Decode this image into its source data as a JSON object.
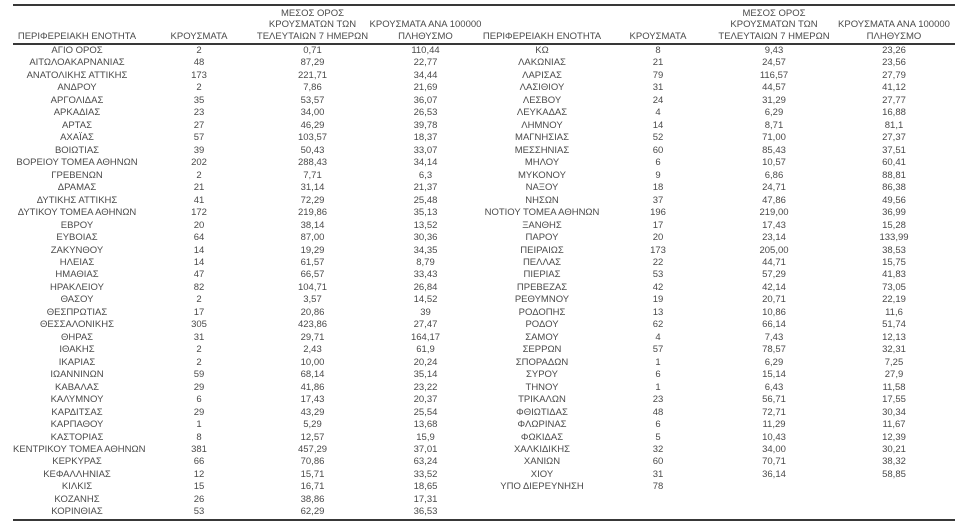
{
  "colors": {
    "text": "#4a4a4a",
    "border": "#383838",
    "background": "#ffffff"
  },
  "table": {
    "columns": {
      "region": "ΠΕΡΙΦΕΡΕΙΑΚΗ ΕΝΟΤΗΤΑ",
      "cases": "ΚΡΟΥΣΜΑΤΑ",
      "avg7": {
        "l1": "ΜΕΣΟΣ ΟΡΟΣ",
        "l2": "ΚΡΟΥΣΜΑΤΩΝ ΤΩΝ",
        "l3": "ΤΕΛΕΥΤΑΙΩΝ 7 ΗΜΕΡΩΝ"
      },
      "per100k": {
        "l1": "ΚΡΟΥΣΜΑΤΑ ΑΝΑ 100000",
        "l2": "ΠΛΗΘΥΣΜΟ"
      }
    },
    "left_rows": [
      [
        "ΑΓΙΟ ΟΡΟΣ",
        "2",
        "0,71",
        "110,44"
      ],
      [
        "ΑΙΤΩΛΟΑΚΑΡΝΑΝΙΑΣ",
        "48",
        "87,29",
        "22,77"
      ],
      [
        "ΑΝΑΤΟΛΙΚΗΣ ΑΤΤΙΚΗΣ",
        "173",
        "221,71",
        "34,44"
      ],
      [
        "ΑΝΔΡΟΥ",
        "2",
        "7,86",
        "21,69"
      ],
      [
        "ΑΡΓΟΛΙΔΑΣ",
        "35",
        "53,57",
        "36,07"
      ],
      [
        "ΑΡΚΑΔΙΑΣ",
        "23",
        "34,00",
        "26,53"
      ],
      [
        "ΑΡΤΑΣ",
        "27",
        "46,29",
        "39,78"
      ],
      [
        "ΑΧΑΪΑΣ",
        "57",
        "103,57",
        "18,37"
      ],
      [
        "ΒΟΙΩΤΙΑΣ",
        "39",
        "50,43",
        "33,07"
      ],
      [
        "ΒΟΡΕΙΟΥ ΤΟΜΕΑ ΑΘΗΝΩΝ",
        "202",
        "288,43",
        "34,14"
      ],
      [
        "ΓΡΕΒΕΝΩΝ",
        "2",
        "7,71",
        "6,3"
      ],
      [
        "ΔΡΑΜΑΣ",
        "21",
        "31,14",
        "21,37"
      ],
      [
        "ΔΥΤΙΚΗΣ ΑΤΤΙΚΗΣ",
        "41",
        "72,29",
        "25,48"
      ],
      [
        "ΔΥΤΙΚΟΥ ΤΟΜΕΑ ΑΘΗΝΩΝ",
        "172",
        "219,86",
        "35,13"
      ],
      [
        "ΕΒΡΟΥ",
        "20",
        "38,14",
        "13,52"
      ],
      [
        "ΕΥΒΟΙΑΣ",
        "64",
        "87,00",
        "30,36"
      ],
      [
        "ΖΑΚΥΝΘΟΥ",
        "14",
        "19,29",
        "34,35"
      ],
      [
        "ΗΛΕΙΑΣ",
        "14",
        "61,57",
        "8,79"
      ],
      [
        "ΗΜΑΘΙΑΣ",
        "47",
        "66,57",
        "33,43"
      ],
      [
        "ΗΡΑΚΛΕΙΟΥ",
        "82",
        "104,71",
        "26,84"
      ],
      [
        "ΘΑΣΟΥ",
        "2",
        "3,57",
        "14,52"
      ],
      [
        "ΘΕΣΠΡΩΤΙΑΣ",
        "17",
        "20,86",
        "39"
      ],
      [
        "ΘΕΣΣΑΛΟΝΙΚΗΣ",
        "305",
        "423,86",
        "27,47"
      ],
      [
        "ΘΗΡΑΣ",
        "31",
        "29,71",
        "164,17"
      ],
      [
        "ΙΘΑΚΗΣ",
        "2",
        "2,43",
        "61,9"
      ],
      [
        "ΙΚΑΡΙΑΣ",
        "2",
        "10,00",
        "20,24"
      ],
      [
        "ΙΩΑΝΝΙΝΩΝ",
        "59",
        "68,14",
        "35,14"
      ],
      [
        "ΚΑΒΑΛΑΣ",
        "29",
        "41,86",
        "23,22"
      ],
      [
        "ΚΑΛΥΜΝΟΥ",
        "6",
        "17,43",
        "20,37"
      ],
      [
        "ΚΑΡΔΙΤΣΑΣ",
        "29",
        "43,29",
        "25,54"
      ],
      [
        "ΚΑΡΠΑΘΟΥ",
        "1",
        "5,29",
        "13,68"
      ],
      [
        "ΚΑΣΤΟΡΙΑΣ",
        "8",
        "12,57",
        "15,9"
      ],
      [
        "ΚΕΝΤΡΙΚΟΥ ΤΟΜΕΑ ΑΘΗΝΩΝ",
        "381",
        "457,29",
        "37,01"
      ],
      [
        "ΚΕΡΚΥΡΑΣ",
        "66",
        "70,86",
        "63,24"
      ],
      [
        "ΚΕΦΑΛΛΗΝΙΑΣ",
        "12",
        "15,71",
        "33,52"
      ],
      [
        "ΚΙΛΚΙΣ",
        "15",
        "16,71",
        "18,65"
      ],
      [
        "ΚΟΖΑΝΗΣ",
        "26",
        "38,86",
        "17,31"
      ],
      [
        "ΚΟΡΙΝΘΙΑΣ",
        "53",
        "62,29",
        "36,53"
      ]
    ],
    "right_rows": [
      [
        "ΚΩ",
        "8",
        "9,43",
        "23,26"
      ],
      [
        "ΛΑΚΩΝΙΑΣ",
        "21",
        "24,57",
        "23,56"
      ],
      [
        "ΛΑΡΙΣΑΣ",
        "79",
        "116,57",
        "27,79"
      ],
      [
        "ΛΑΣΙΘΙΟΥ",
        "31",
        "44,57",
        "41,12"
      ],
      [
        "ΛΕΣΒΟΥ",
        "24",
        "31,29",
        "27,77"
      ],
      [
        "ΛΕΥΚΑΔΑΣ",
        "4",
        "6,29",
        "16,88"
      ],
      [
        "ΛΗΜΝΟΥ",
        "14",
        "8,71",
        "81,1"
      ],
      [
        "ΜΑΓΝΗΣΙΑΣ",
        "52",
        "71,00",
        "27,37"
      ],
      [
        "ΜΕΣΣΗΝΙΑΣ",
        "60",
        "85,43",
        "37,51"
      ],
      [
        "ΜΗΛΟΥ",
        "6",
        "10,57",
        "60,41"
      ],
      [
        "ΜΥΚΟΝΟΥ",
        "9",
        "6,86",
        "88,81"
      ],
      [
        "ΝΑΞΟΥ",
        "18",
        "24,71",
        "86,38"
      ],
      [
        "ΝΗΣΩΝ",
        "37",
        "47,86",
        "49,56"
      ],
      [
        "ΝΟΤΙΟΥ ΤΟΜΕΑ ΑΘΗΝΩΝ",
        "196",
        "219,00",
        "36,99"
      ],
      [
        "ΞΑΝΘΗΣ",
        "17",
        "17,43",
        "15,28"
      ],
      [
        "ΠΑΡΟΥ",
        "20",
        "23,14",
        "133,99"
      ],
      [
        "ΠΕΙΡΑΙΩΣ",
        "173",
        "205,00",
        "38,53"
      ],
      [
        "ΠΕΛΛΑΣ",
        "22",
        "44,71",
        "15,75"
      ],
      [
        "ΠΙΕΡΙΑΣ",
        "53",
        "57,29",
        "41,83"
      ],
      [
        "ΠΡΕΒΕΖΑΣ",
        "42",
        "42,14",
        "73,05"
      ],
      [
        "ΡΕΘΥΜΝΟΥ",
        "19",
        "20,71",
        "22,19"
      ],
      [
        "ΡΟΔΟΠΗΣ",
        "13",
        "10,86",
        "11,6"
      ],
      [
        "ΡΟΔΟΥ",
        "62",
        "66,14",
        "51,74"
      ],
      [
        "ΣΑΜΟΥ",
        "4",
        "7,43",
        "12,13"
      ],
      [
        "ΣΕΡΡΩΝ",
        "57",
        "78,57",
        "32,31"
      ],
      [
        "ΣΠΟΡΑΔΩΝ",
        "1",
        "6,29",
        "7,25"
      ],
      [
        "ΣΥΡΟΥ",
        "6",
        "15,14",
        "27,9"
      ],
      [
        "ΤΗΝΟΥ",
        "1",
        "6,43",
        "11,58"
      ],
      [
        "ΤΡΙΚΑΛΩΝ",
        "23",
        "56,71",
        "17,55"
      ],
      [
        "ΦΘΙΩΤΙΔΑΣ",
        "48",
        "72,71",
        "30,34"
      ],
      [
        "ΦΛΩΡΙΝΑΣ",
        "6",
        "11,29",
        "11,67"
      ],
      [
        "ΦΩΚΙΔΑΣ",
        "5",
        "10,43",
        "12,39"
      ],
      [
        "ΧΑΛΚΙΔΙΚΗΣ",
        "32",
        "34,00",
        "30,21"
      ],
      [
        "ΧΑΝΙΩΝ",
        "60",
        "70,71",
        "38,32"
      ],
      [
        "ΧΙΟΥ",
        "31",
        "36,14",
        "58,85"
      ],
      [
        "ΥΠΟ ΔΙΕΡΕΥΝΗΣΗ",
        "78",
        "",
        ""
      ]
    ]
  }
}
